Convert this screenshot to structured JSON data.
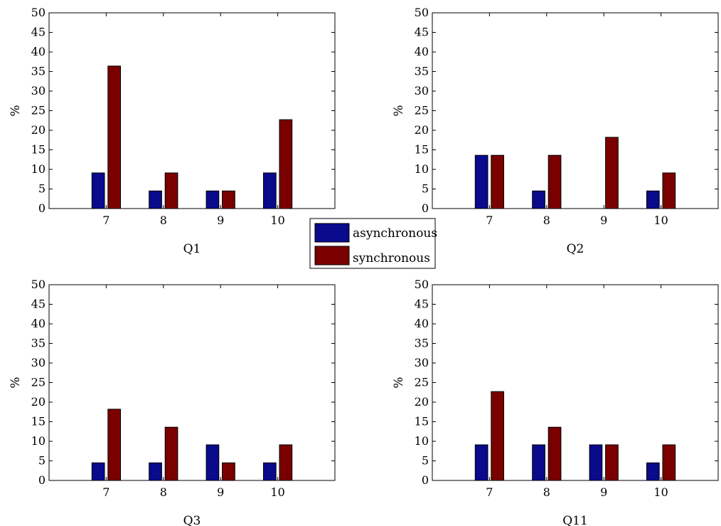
{
  "colors": {
    "asynchronous": "#0a0a8c",
    "synchronous": "#7a0000",
    "axis": "#000000",
    "background": "#ffffff"
  },
  "legend": {
    "items": [
      {
        "label": "asynchronous",
        "color": "#0a0a8c"
      },
      {
        "label": "synchronous",
        "color": "#7a0000"
      }
    ]
  },
  "chart_data": [
    {
      "type": "bar",
      "xlabel": "Q1",
      "ylabel": "%",
      "ylim": [
        0,
        50
      ],
      "yticks": [
        0,
        5,
        10,
        15,
        20,
        25,
        30,
        35,
        40,
        45,
        50
      ],
      "categories": [
        "7",
        "8",
        "9",
        "10"
      ],
      "series": [
        {
          "name": "asynchronous",
          "values": [
            9.1,
            4.5,
            4.5,
            9.1
          ]
        },
        {
          "name": "synchronous",
          "values": [
            36.4,
            9.1,
            4.5,
            22.7
          ]
        }
      ]
    },
    {
      "type": "bar",
      "xlabel": "Q2",
      "ylabel": "%",
      "ylim": [
        0,
        50
      ],
      "yticks": [
        0,
        5,
        10,
        15,
        20,
        25,
        30,
        35,
        40,
        45,
        50
      ],
      "categories": [
        "7",
        "8",
        "9",
        "10"
      ],
      "series": [
        {
          "name": "asynchronous",
          "values": [
            13.6,
            4.5,
            0,
            4.5
          ]
        },
        {
          "name": "synchronous",
          "values": [
            13.6,
            13.6,
            18.2,
            9.1
          ]
        }
      ]
    },
    {
      "type": "bar",
      "xlabel": "Q3",
      "ylabel": "%",
      "ylim": [
        0,
        50
      ],
      "yticks": [
        0,
        5,
        10,
        15,
        20,
        25,
        30,
        35,
        40,
        45,
        50
      ],
      "categories": [
        "7",
        "8",
        "9",
        "10"
      ],
      "series": [
        {
          "name": "asynchronous",
          "values": [
            4.5,
            4.5,
            9.1,
            4.5
          ]
        },
        {
          "name": "synchronous",
          "values": [
            18.2,
            13.6,
            4.5,
            9.1
          ]
        }
      ]
    },
    {
      "type": "bar",
      "xlabel": "Q11",
      "ylabel": "%",
      "ylim": [
        0,
        50
      ],
      "yticks": [
        0,
        5,
        10,
        15,
        20,
        25,
        30,
        35,
        40,
        45,
        50
      ],
      "categories": [
        "7",
        "8",
        "9",
        "10"
      ],
      "series": [
        {
          "name": "asynchronous",
          "values": [
            9.1,
            9.1,
            9.1,
            4.5
          ]
        },
        {
          "name": "synchronous",
          "values": [
            22.7,
            13.6,
            9.1,
            9.1
          ]
        }
      ]
    }
  ]
}
